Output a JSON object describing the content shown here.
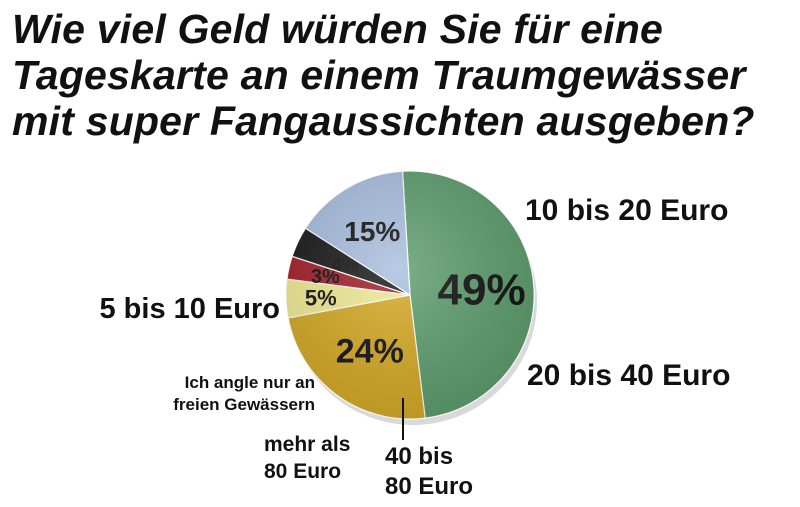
{
  "title_lines": [
    "Wie viel Geld würden Sie für eine",
    "Tageskarte an einem Traumgewässer",
    "mit super Fangaussichten ausgeben?"
  ],
  "chart_data": {
    "type": "pie",
    "title": "Wie viel Geld würden Sie für eine Tageskarte an einem Traumgewässer mit super Fangaussichten ausgeben?",
    "slices": [
      {
        "label": "10 bis 20 Euro",
        "label_lines": [
          "10 bis 20 Euro"
        ],
        "value": 49,
        "value_text": "49%",
        "color": "#5e9e6e"
      },
      {
        "label": "20 bis 40 Euro",
        "label_lines": [
          "20 bis 40 Euro"
        ],
        "value": 24,
        "value_text": "24%",
        "color": "#d6aa25"
      },
      {
        "label": "40 bis 80 Euro",
        "label_lines": [
          "40 bis",
          "80 Euro"
        ],
        "value": 5,
        "value_text": "5%",
        "color": "#f1eb94"
      },
      {
        "label": "mehr als 80 Euro",
        "label_lines": [
          "mehr als",
          "80 Euro"
        ],
        "value": 3,
        "value_text": "3%",
        "color": "#a4202a"
      },
      {
        "label": "Ich angle nur an freien Gewässern",
        "label_lines": [
          "Ich angle nur an",
          "freien Gewässern"
        ],
        "value": 4,
        "value_text": "4%",
        "color": "#1a1a1a"
      },
      {
        "label": "5 bis 10 Euro",
        "label_lines": [
          "5 bis 10 Euro"
        ],
        "value": 15,
        "value_text": "15%",
        "color": "#a9bfdf"
      }
    ]
  }
}
